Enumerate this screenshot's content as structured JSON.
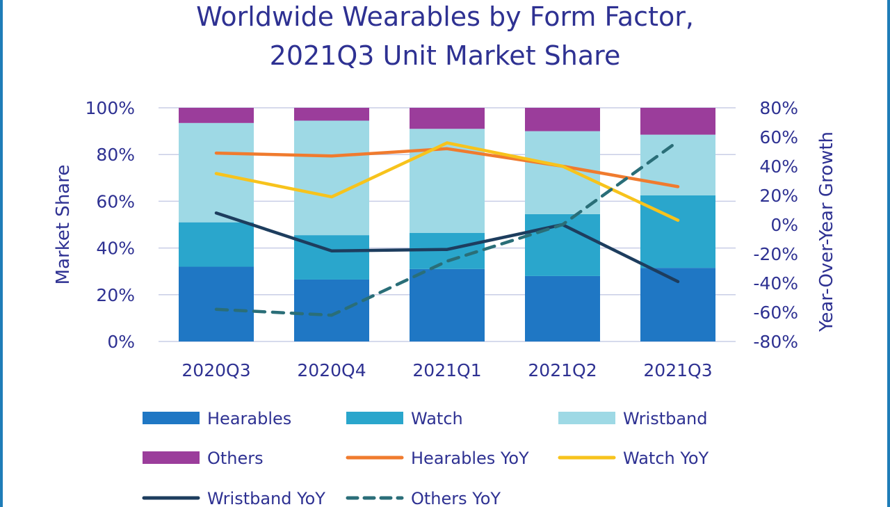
{
  "chart_data": {
    "type": "bar",
    "title_line1": "Worldwide Wearables by Form Factor,",
    "title_line2": "2021Q3 Unit Market Share",
    "ylabel": "Market Share",
    "y2label": "Year-Over-Year  Growth",
    "ylim": [
      0,
      100
    ],
    "y2lim": [
      -80,
      80
    ],
    "yticks": [
      "0%",
      "20%",
      "40%",
      "60%",
      "80%",
      "100%"
    ],
    "y2ticks": [
      "-80%",
      "-60%",
      "-40%",
      "-20%",
      "0%",
      "20%",
      "40%",
      "60%",
      "80%"
    ],
    "categories": [
      "2020Q3",
      "2020Q4",
      "2021Q1",
      "2021Q2",
      "2021Q3"
    ],
    "stacked": true,
    "bar_series": [
      {
        "name": "Hearables",
        "color": "#1f77c4",
        "values": [
          32,
          26.5,
          31,
          28,
          31.5
        ]
      },
      {
        "name": "Watch",
        "color": "#2aa6cc",
        "values": [
          19,
          19,
          15.5,
          26.5,
          31
        ]
      },
      {
        "name": "Wristband",
        "color": "#9ed9e5",
        "values": [
          42.5,
          49,
          44.5,
          35.5,
          26
        ]
      },
      {
        "name": "Others",
        "color": "#9b3d9b",
        "values": [
          6.5,
          5.5,
          9,
          10,
          11.5
        ]
      }
    ],
    "line_series": [
      {
        "name": "Hearables YoY",
        "color": "#f07b2e",
        "style": "solid",
        "values": [
          49,
          47,
          52,
          40,
          26
        ]
      },
      {
        "name": "Watch YoY",
        "color": "#f7c31c",
        "style": "solid",
        "values": [
          35,
          19,
          56,
          40,
          3
        ]
      },
      {
        "name": "Wristband YoY",
        "color": "#1d3d5e",
        "style": "solid",
        "values": [
          8,
          -18,
          -17,
          0,
          -39
        ]
      },
      {
        "name": "Others YoY",
        "color": "#2a6e78",
        "style": "dashed",
        "values": [
          -58,
          -62,
          -25,
          0,
          57
        ]
      }
    ],
    "grid": true,
    "legend_position": "bottom"
  }
}
